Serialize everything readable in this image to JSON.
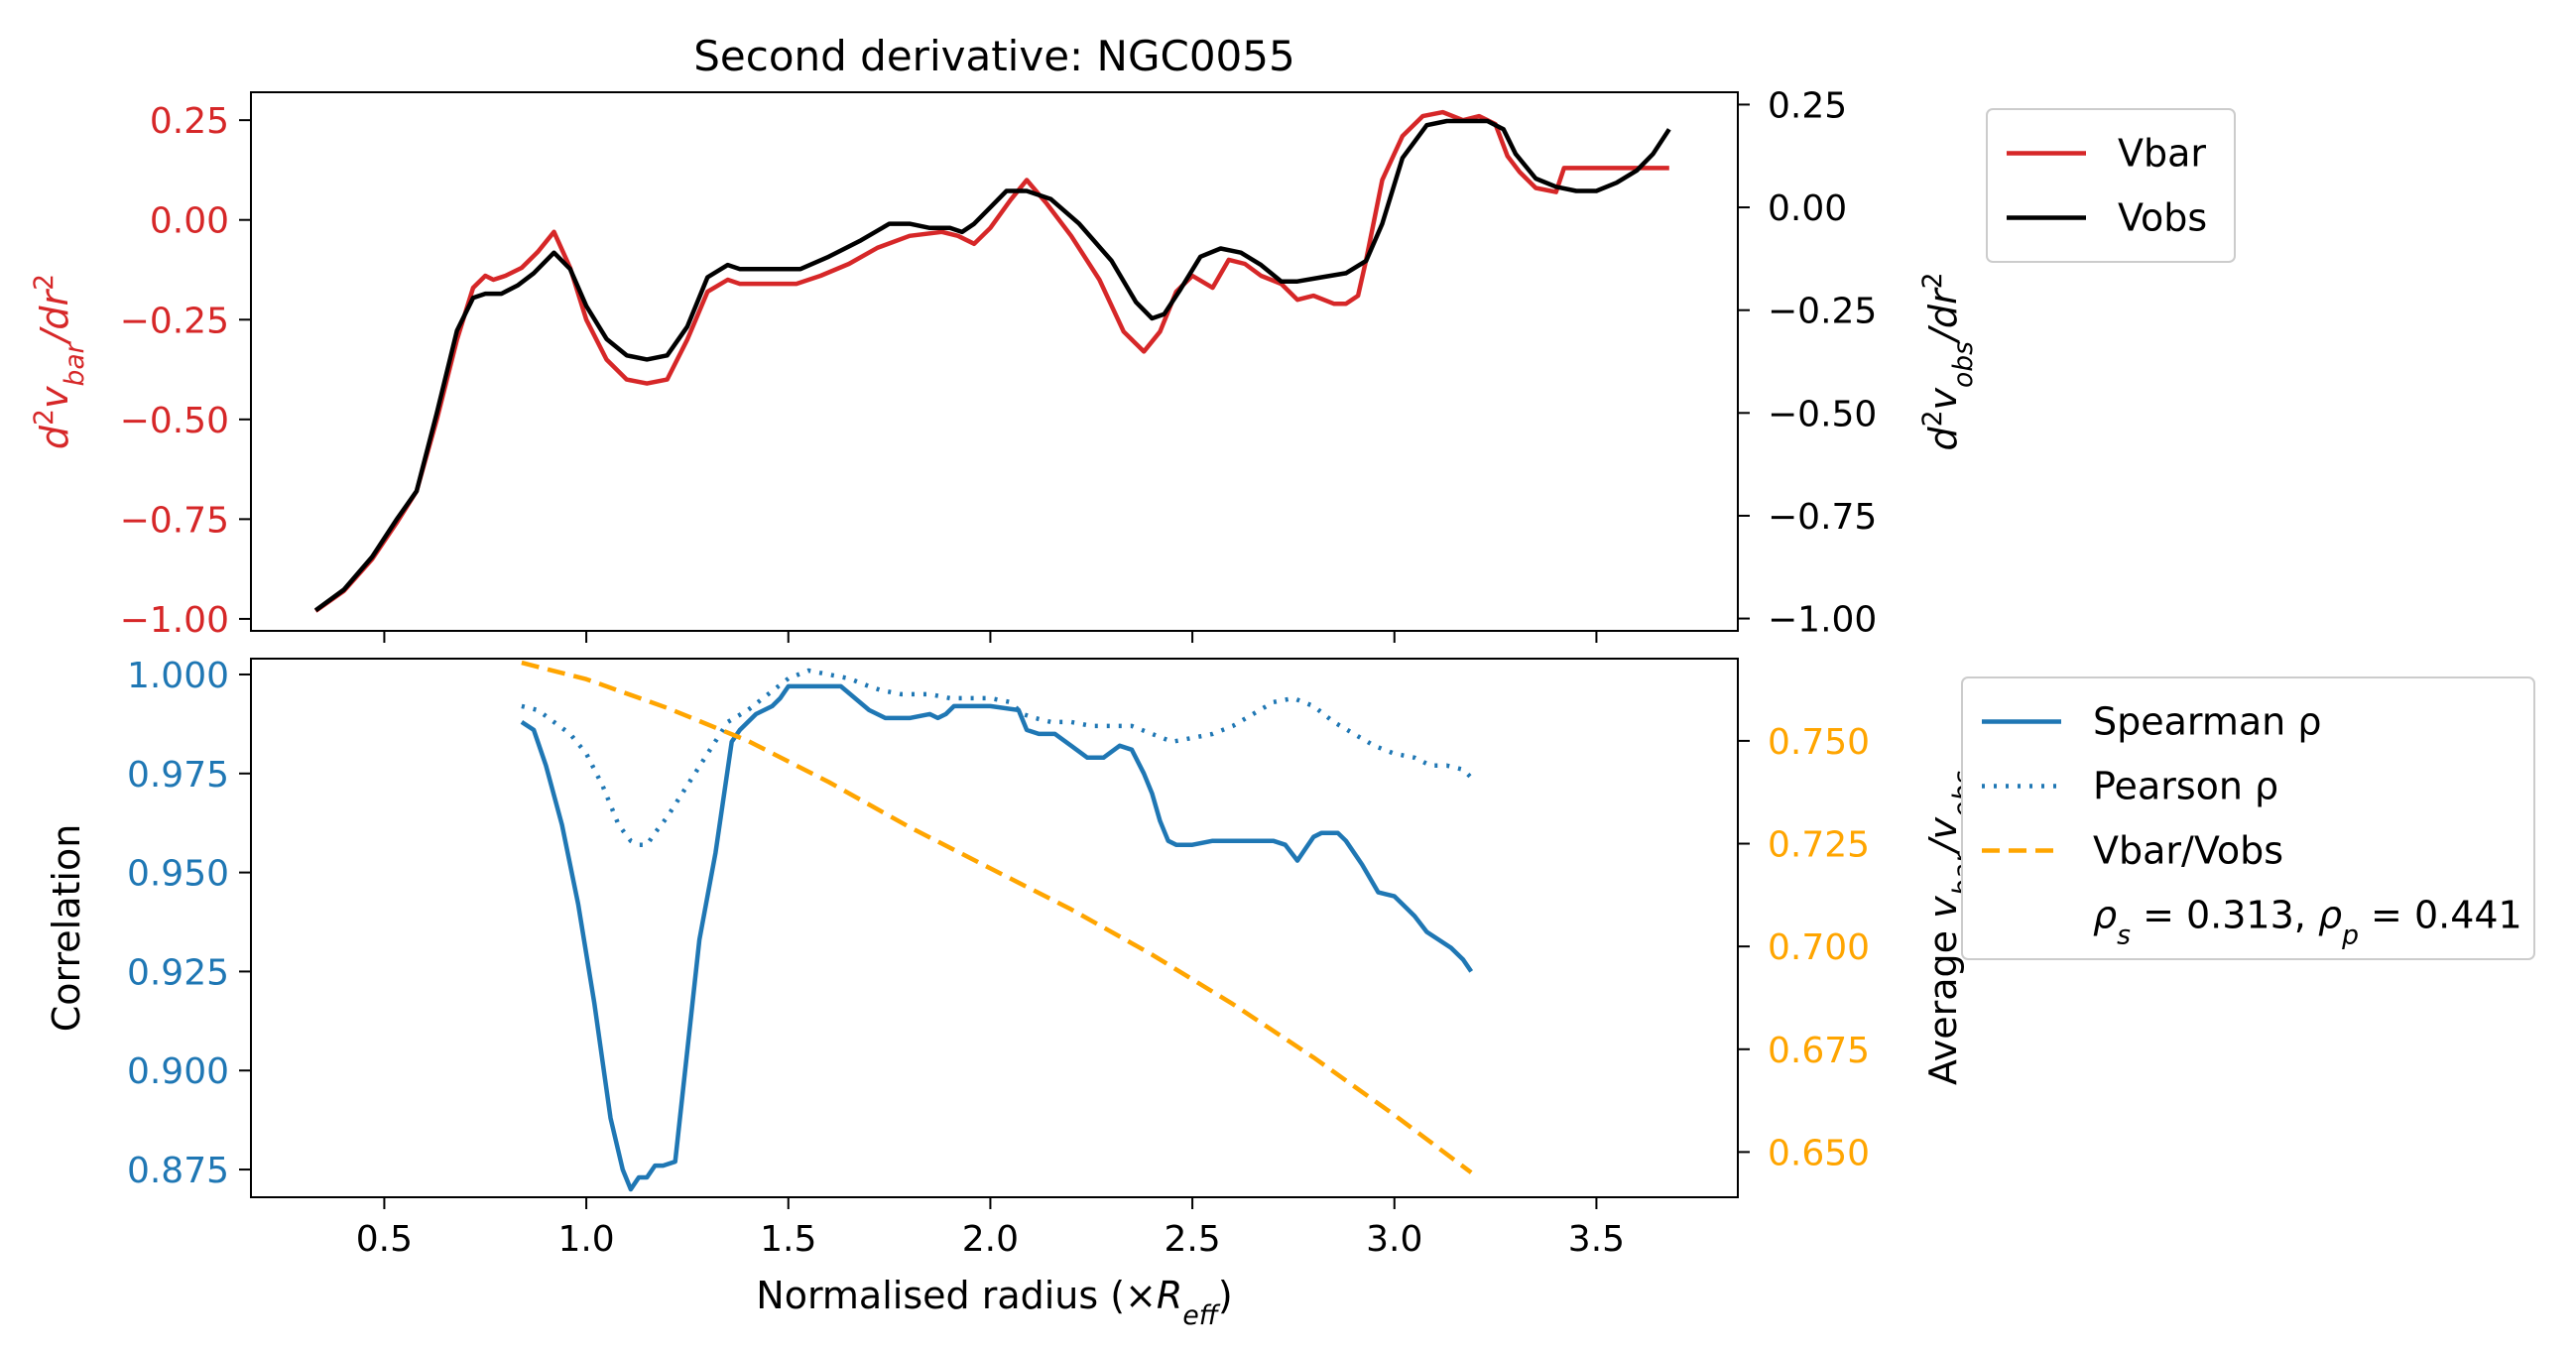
{
  "chart_data": [
    {
      "type": "line",
      "title": "Second derivative: NGC0055",
      "xlabel": "",
      "ylabel_left": "d²v_bar/dr²",
      "ylabel_right": "d²v_obs/dr²",
      "xlim": [
        0.17,
        3.85
      ],
      "ylim_left": [
        -1.03,
        0.32
      ],
      "ylim_right": [
        -1.03,
        0.28
      ],
      "xticks": [
        0.5,
        1.0,
        1.5,
        2.0,
        2.5,
        3.0,
        3.5
      ],
      "yticks_left": [
        -1.0,
        -0.75,
        -0.5,
        -0.25,
        0.0,
        0.25
      ],
      "yticks_right": [
        -1.0,
        -0.75,
        -0.5,
        -0.25,
        0.0,
        0.25
      ],
      "grid": false,
      "legend": "outside-right-top",
      "series": [
        {
          "name": "Vbar",
          "axis": "left",
          "color": "#d62728",
          "style": "solid",
          "x": [
            0.33,
            0.4,
            0.47,
            0.53,
            0.58,
            0.63,
            0.68,
            0.72,
            0.75,
            0.77,
            0.8,
            0.84,
            0.88,
            0.92,
            0.96,
            1.0,
            1.05,
            1.1,
            1.15,
            1.2,
            1.25,
            1.3,
            1.35,
            1.38,
            1.42,
            1.47,
            1.52,
            1.58,
            1.65,
            1.72,
            1.8,
            1.88,
            1.92,
            1.96,
            2.0,
            2.05,
            2.09,
            2.14,
            2.2,
            2.27,
            2.33,
            2.38,
            2.42,
            2.46,
            2.5,
            2.55,
            2.59,
            2.63,
            2.67,
            2.72,
            2.76,
            2.8,
            2.85,
            2.88,
            2.91,
            2.93,
            2.97,
            3.02,
            3.07,
            3.12,
            3.17,
            3.21,
            3.25,
            3.28,
            3.31,
            3.35,
            3.4,
            3.42,
            3.47,
            3.55,
            3.62,
            3.68
          ],
          "y": [
            -0.98,
            -0.93,
            -0.85,
            -0.76,
            -0.68,
            -0.5,
            -0.3,
            -0.17,
            -0.14,
            -0.15,
            -0.14,
            -0.12,
            -0.08,
            -0.03,
            -0.12,
            -0.25,
            -0.35,
            -0.4,
            -0.41,
            -0.4,
            -0.3,
            -0.18,
            -0.15,
            -0.16,
            -0.16,
            -0.16,
            -0.16,
            -0.14,
            -0.11,
            -0.07,
            -0.04,
            -0.03,
            -0.04,
            -0.06,
            -0.02,
            0.05,
            0.1,
            0.04,
            -0.04,
            -0.15,
            -0.28,
            -0.33,
            -0.28,
            -0.18,
            -0.14,
            -0.17,
            -0.1,
            -0.11,
            -0.14,
            -0.16,
            -0.2,
            -0.19,
            -0.21,
            -0.21,
            -0.19,
            -0.1,
            0.1,
            0.21,
            0.26,
            0.27,
            0.25,
            0.26,
            0.24,
            0.16,
            0.12,
            0.08,
            0.07,
            0.13,
            0.13,
            0.13,
            0.13,
            0.13
          ]
        },
        {
          "name": "Vobs",
          "axis": "right",
          "color": "#000000",
          "style": "solid",
          "x": [
            0.33,
            0.4,
            0.47,
            0.53,
            0.58,
            0.63,
            0.68,
            0.72,
            0.75,
            0.79,
            0.83,
            0.87,
            0.92,
            0.96,
            1.0,
            1.05,
            1.1,
            1.15,
            1.2,
            1.25,
            1.3,
            1.35,
            1.38,
            1.42,
            1.47,
            1.53,
            1.6,
            1.68,
            1.75,
            1.8,
            1.85,
            1.9,
            1.93,
            1.96,
            2.0,
            2.04,
            2.09,
            2.15,
            2.22,
            2.3,
            2.36,
            2.4,
            2.43,
            2.47,
            2.52,
            2.57,
            2.62,
            2.67,
            2.72,
            2.76,
            2.82,
            2.88,
            2.93,
            2.97,
            3.02,
            3.08,
            3.13,
            3.18,
            3.23,
            3.27,
            3.3,
            3.35,
            3.4,
            3.45,
            3.5,
            3.55,
            3.6,
            3.64,
            3.68
          ],
          "y": [
            -0.98,
            -0.93,
            -0.85,
            -0.76,
            -0.69,
            -0.5,
            -0.3,
            -0.22,
            -0.21,
            -0.21,
            -0.19,
            -0.16,
            -0.11,
            -0.15,
            -0.24,
            -0.32,
            -0.36,
            -0.37,
            -0.36,
            -0.29,
            -0.17,
            -0.14,
            -0.15,
            -0.15,
            -0.15,
            -0.15,
            -0.12,
            -0.08,
            -0.04,
            -0.04,
            -0.05,
            -0.05,
            -0.06,
            -0.04,
            0.0,
            0.04,
            0.04,
            0.02,
            -0.04,
            -0.13,
            -0.23,
            -0.27,
            -0.26,
            -0.2,
            -0.12,
            -0.1,
            -0.11,
            -0.14,
            -0.18,
            -0.18,
            -0.17,
            -0.16,
            -0.13,
            -0.04,
            0.12,
            0.2,
            0.21,
            0.21,
            0.21,
            0.19,
            0.13,
            0.07,
            0.05,
            0.04,
            0.04,
            0.06,
            0.09,
            0.13,
            0.19
          ]
        }
      ]
    },
    {
      "type": "line",
      "title": "",
      "xlabel": "Normalised radius (×R_eff)",
      "ylabel_left": "Correlation",
      "ylabel_right": "Average v_bar/v_obs",
      "xlim": [
        0.17,
        3.85
      ],
      "ylim_left": [
        0.868,
        1.004
      ],
      "ylim_right": [
        0.639,
        0.77
      ],
      "xticks": [
        0.5,
        1.0,
        1.5,
        2.0,
        2.5,
        3.0,
        3.5
      ],
      "yticks_left": [
        0.875,
        0.9,
        0.925,
        0.95,
        0.975,
        1.0
      ],
      "yticks_right": [
        0.65,
        0.675,
        0.7,
        0.725,
        0.75
      ],
      "grid": false,
      "legend": "outside-right-top",
      "legend_note": "ρs = 0.313, ρp = 0.441",
      "series": [
        {
          "name": "Spearman ρ",
          "axis": "left",
          "color": "#1f77b4",
          "style": "solid",
          "x": [
            0.84,
            0.87,
            0.9,
            0.94,
            0.98,
            1.02,
            1.06,
            1.09,
            1.11,
            1.13,
            1.15,
            1.17,
            1.19,
            1.22,
            1.25,
            1.28,
            1.32,
            1.36,
            1.38,
            1.42,
            1.46,
            1.48,
            1.5,
            1.55,
            1.63,
            1.7,
            1.72,
            1.74,
            1.8,
            1.85,
            1.87,
            1.89,
            1.91,
            2.0,
            2.07,
            2.09,
            2.12,
            2.16,
            2.2,
            2.24,
            2.28,
            2.32,
            2.35,
            2.38,
            2.4,
            2.42,
            2.44,
            2.46,
            2.5,
            2.55,
            2.6,
            2.65,
            2.7,
            2.73,
            2.76,
            2.78,
            2.8,
            2.82,
            2.86,
            2.88,
            2.92,
            2.96,
            3.0,
            3.02,
            3.05,
            3.08,
            3.11,
            3.14,
            3.17,
            3.19
          ],
          "y": [
            0.988,
            0.986,
            0.977,
            0.962,
            0.942,
            0.917,
            0.888,
            0.875,
            0.87,
            0.873,
            0.873,
            0.876,
            0.876,
            0.877,
            0.905,
            0.933,
            0.955,
            0.983,
            0.986,
            0.99,
            0.992,
            0.994,
            0.997,
            0.997,
            0.997,
            0.991,
            0.99,
            0.989,
            0.989,
            0.99,
            0.989,
            0.99,
            0.992,
            0.992,
            0.991,
            0.986,
            0.985,
            0.985,
            0.982,
            0.979,
            0.979,
            0.982,
            0.981,
            0.975,
            0.97,
            0.963,
            0.958,
            0.957,
            0.957,
            0.958,
            0.958,
            0.958,
            0.958,
            0.957,
            0.953,
            0.956,
            0.959,
            0.96,
            0.96,
            0.958,
            0.952,
            0.945,
            0.944,
            0.942,
            0.939,
            0.935,
            0.933,
            0.931,
            0.928,
            0.925
          ]
        },
        {
          "name": "Pearson ρ",
          "axis": "left",
          "color": "#1f77b4",
          "style": "dotted",
          "x": [
            0.84,
            0.88,
            0.92,
            0.96,
            1.0,
            1.04,
            1.08,
            1.11,
            1.13,
            1.15,
            1.17,
            1.2,
            1.25,
            1.3,
            1.35,
            1.4,
            1.45,
            1.5,
            1.55,
            1.6,
            1.65,
            1.7,
            1.73,
            1.78,
            1.85,
            1.9,
            1.95,
            2.0,
            2.05,
            2.08,
            2.11,
            2.15,
            2.2,
            2.25,
            2.3,
            2.35,
            2.4,
            2.45,
            2.5,
            2.55,
            2.6,
            2.65,
            2.7,
            2.75,
            2.8,
            2.85,
            2.9,
            2.95,
            3.0,
            3.05,
            3.09,
            3.13,
            3.17,
            3.2
          ],
          "y": [
            0.992,
            0.991,
            0.988,
            0.985,
            0.98,
            0.972,
            0.962,
            0.958,
            0.957,
            0.957,
            0.96,
            0.964,
            0.972,
            0.98,
            0.988,
            0.991,
            0.995,
            0.999,
            1.001,
            1.0,
            0.999,
            0.997,
            0.996,
            0.995,
            0.995,
            0.994,
            0.994,
            0.994,
            0.993,
            0.99,
            0.989,
            0.988,
            0.988,
            0.987,
            0.987,
            0.987,
            0.985,
            0.983,
            0.984,
            0.985,
            0.987,
            0.99,
            0.993,
            0.994,
            0.992,
            0.988,
            0.985,
            0.982,
            0.98,
            0.979,
            0.977,
            0.977,
            0.976,
            0.973
          ]
        },
        {
          "name": "Vbar/Vobs",
          "axis": "right",
          "color": "#ffa500",
          "style": "dashed",
          "x": [
            0.84,
            1.0,
            1.2,
            1.4,
            1.6,
            1.8,
            2.0,
            2.2,
            2.4,
            2.6,
            2.8,
            3.0,
            3.19
          ],
          "y": [
            0.769,
            0.765,
            0.758,
            0.75,
            0.74,
            0.729,
            0.719,
            0.709,
            0.698,
            0.686,
            0.673,
            0.659,
            0.645
          ]
        }
      ]
    }
  ]
}
